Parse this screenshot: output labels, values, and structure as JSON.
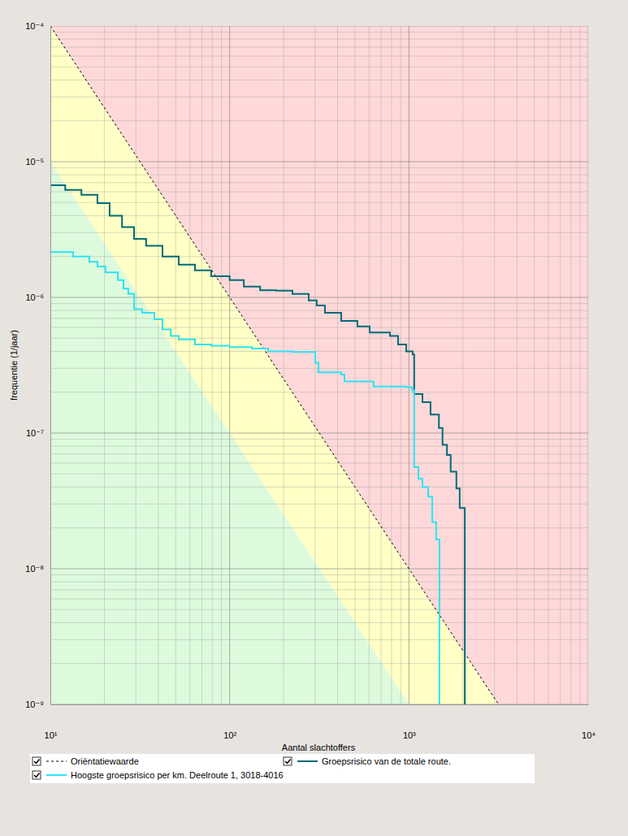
{
  "chart_data": {
    "type": "line",
    "x_label": "Aantal slachtoffers",
    "y_label": "frequentie (1/jaar)",
    "log": true,
    "grid": true,
    "legend": "bottom",
    "xlim": [
      10,
      10000
    ],
    "ylim": [
      1e-09,
      0.0001
    ],
    "xticks": [
      {
        "value": 10,
        "label": "10¹"
      },
      {
        "value": 100,
        "label": "10²"
      },
      {
        "value": 1000,
        "label": "10³"
      },
      {
        "value": 10000,
        "label": "10⁴"
      }
    ],
    "yticks": [
      {
        "value": 1e-09,
        "label": "10⁻⁹"
      },
      {
        "value": 1e-08,
        "label": "10⁻⁸"
      },
      {
        "value": 1e-07,
        "label": "10⁻⁷"
      },
      {
        "value": 1e-06,
        "label": "10⁻⁶"
      },
      {
        "value": 1e-05,
        "label": "10⁻⁵"
      },
      {
        "value": 0.0001,
        "label": "10⁻⁴"
      }
    ],
    "xticks_minor": [
      20,
      30,
      40,
      50,
      60,
      70,
      80,
      90,
      200,
      300,
      400,
      500,
      600,
      700,
      800,
      900,
      2000,
      3000,
      4000,
      5000,
      6000,
      7000,
      8000,
      9000
    ],
    "yticks_minor": [
      2e-09,
      3e-09,
      4e-09,
      5e-09,
      6e-09,
      7e-09,
      8e-09,
      9e-09,
      2e-08,
      3e-08,
      4e-08,
      5e-08,
      6e-08,
      7e-08,
      8e-08,
      9e-08,
      2e-07,
      3e-07,
      4e-07,
      5e-07,
      6e-07,
      7e-07,
      8e-07,
      9e-07,
      2e-06,
      3e-06,
      4e-06,
      5e-06,
      6e-06,
      7e-06,
      8e-06,
      9e-06,
      2e-05,
      3e-05,
      4e-05,
      5e-05,
      6e-05,
      7e-05,
      8e-05,
      9e-05
    ],
    "zones": [
      {
        "color": "#ffd9d9",
        "x": [
          10,
          3162,
          10000,
          10000
        ],
        "y": [
          0.0001,
          1e-09,
          1e-09,
          0.0001
        ]
      },
      {
        "color": "#ffffc6",
        "x": [
          10,
          3162,
          1000,
          10
        ],
        "y": [
          0.0001,
          1e-09,
          1e-09,
          1e-05
        ]
      },
      {
        "color": "#ddfadd",
        "x": [
          10,
          1000,
          10
        ],
        "y": [
          1e-05,
          1e-09,
          1e-09
        ]
      }
    ],
    "series": [
      {
        "name": "Oriëntatiewaarde",
        "type": "line",
        "line_style": "dashed",
        "color": "#000000",
        "x": [
          10,
          3162
        ],
        "values": [
          0.0001,
          1e-09
        ]
      },
      {
        "name": "Groepsrisico van de totale route.",
        "type": "step",
        "line_style": "solid",
        "color": "#006b77",
        "x": [
          10,
          12.1,
          14.9,
          18.3,
          21.4,
          25.1,
          29.3,
          34.2,
          42.2,
          52,
          64.1,
          78.9,
          100,
          120,
          148,
          182,
          224,
          276,
          306,
          340,
          419,
          516,
          604,
          783,
          870,
          966,
          1050,
          1070,
          1190,
          1320,
          1470,
          1540,
          1630,
          1710,
          1840,
          1920,
          2050
        ],
        "values": [
          6.7e-06,
          6.2e-06,
          5.7e-06,
          4.95e-06,
          4e-06,
          3.3e-06,
          2.7e-06,
          2.4e-06,
          2e-06,
          1.74e-06,
          1.58e-06,
          1.43e-06,
          1.34e-06,
          1.2e-06,
          1.13e-06,
          1.12e-06,
          1.06e-06,
          9.5e-07,
          8.7e-07,
          7.7e-07,
          6.7e-07,
          6.1e-07,
          5.5e-07,
          5.2e-07,
          4.5e-07,
          4e-07,
          3.8e-07,
          1.94e-07,
          1.69e-07,
          1.37e-07,
          1.09e-07,
          8.2e-08,
          6.9e-08,
          5.2e-08,
          3.9e-08,
          2.8e-08,
          1e-09
        ]
      },
      {
        "name": "Hoogste groepsrisico per km. Deelroute 1, 3018-4016",
        "type": "step",
        "line_style": "solid",
        "color": "#2ce4f4",
        "x": [
          10,
          13.4,
          16.5,
          18.3,
          20.3,
          23.8,
          25.6,
          27.2,
          29.3,
          32.5,
          38,
          42.2,
          46.9,
          52,
          64.1,
          78.9,
          100,
          133,
          164,
          224,
          300,
          313,
          419,
          437,
          636,
          966,
          1040,
          1070,
          1130,
          1190,
          1280,
          1350,
          1420,
          1480
        ],
        "values": [
          2.16e-06,
          2e-06,
          1.83e-06,
          1.69e-06,
          1.53e-06,
          1.34e-06,
          1.16e-06,
          1.06e-06,
          8.2e-07,
          7.7e-07,
          6.9e-07,
          5.8e-07,
          5.2e-07,
          4.9e-07,
          4.5e-07,
          4.4e-07,
          4.3e-07,
          4.2e-07,
          4e-07,
          3.95e-07,
          3.3e-07,
          2.8e-07,
          2.7e-07,
          2.4e-07,
          2.2e-07,
          2.18e-07,
          2.07e-07,
          5.6e-08,
          4.6e-08,
          4e-08,
          3.4e-08,
          2.2e-08,
          1.64e-08,
          1e-09
        ]
      }
    ]
  }
}
